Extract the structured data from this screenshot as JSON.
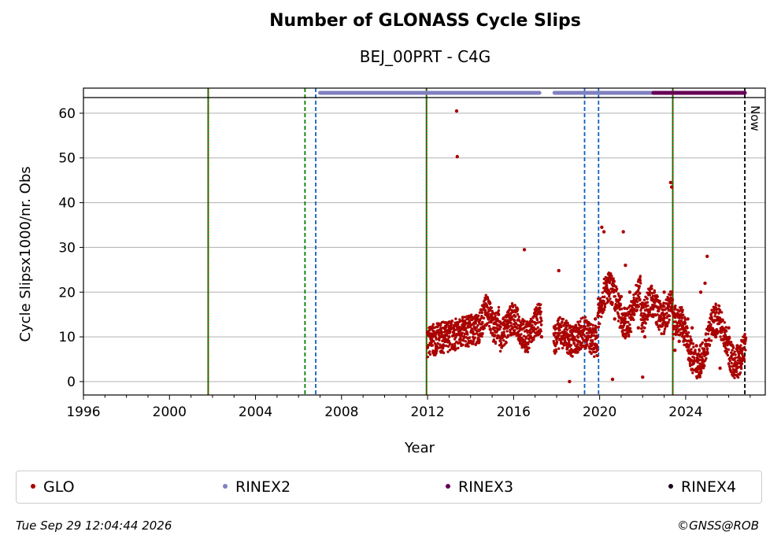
{
  "chart_data": {
    "type": "scatter",
    "title": "Number of GLONASS Cycle Slips",
    "subtitle": "BEJ_00PRT - C4G",
    "xlabel": "Year",
    "ylabel": "Cycle Slipsx1000/nr. Obs",
    "xlim": [
      1996.0,
      2027.7
    ],
    "ylim": [
      -3,
      63.5
    ],
    "x_ticks": [
      1996,
      2000,
      2004,
      2008,
      2012,
      2016,
      2020,
      2024
    ],
    "x_tick_labels": [
      "1996",
      "2000",
      "2004",
      "2008",
      "2012",
      "2016",
      "2020",
      "2024"
    ],
    "y_ticks": [
      0,
      10,
      20,
      30,
      40,
      50,
      60
    ],
    "y_tick_labels": [
      "0",
      "10",
      "20",
      "30",
      "40",
      "50",
      "60"
    ],
    "grid": "horizontal",
    "legend_position": "bottom",
    "now_label": "Now",
    "now_x": 2026.75,
    "vertical_lines": [
      {
        "x": 2001.8,
        "style": "green-red-dotted"
      },
      {
        "x": 2006.3,
        "style": "green-dashed"
      },
      {
        "x": 2006.8,
        "style": "blue-dashed"
      },
      {
        "x": 2011.95,
        "style": "green-red-dotted"
      },
      {
        "x": 2019.3,
        "style": "blue-dashed"
      },
      {
        "x": 2019.95,
        "style": "blue-dashed"
      },
      {
        "x": 2023.4,
        "style": "green-red-dotted"
      }
    ],
    "rinex_periods": [
      {
        "name": "RINEX2",
        "start": 2007.0,
        "end": 2017.2
      },
      {
        "name": "RINEX2",
        "start": 2017.9,
        "end": 2022.5
      },
      {
        "name": "RINEX3",
        "start": 2022.5,
        "end": 2026.75
      }
    ],
    "series": [
      {
        "name": "GLO",
        "points": [
          [
            2012.0,
            11
          ],
          [
            2012.2,
            9
          ],
          [
            2012.4,
            8
          ],
          [
            2012.6,
            10
          ],
          [
            2012.8,
            12
          ],
          [
            2013.0,
            10
          ],
          [
            2013.2,
            11
          ],
          [
            2013.35,
            60.5
          ],
          [
            2013.38,
            50.3
          ],
          [
            2013.5,
            12
          ],
          [
            2013.7,
            10
          ],
          [
            2013.9,
            13
          ],
          [
            2014.1,
            11
          ],
          [
            2014.3,
            14
          ],
          [
            2014.5,
            12
          ],
          [
            2014.7,
            15
          ],
          [
            2014.9,
            16
          ],
          [
            2015.1,
            14
          ],
          [
            2015.3,
            15
          ],
          [
            2015.5,
            13
          ],
          [
            2015.7,
            12
          ],
          [
            2015.9,
            14
          ],
          [
            2016.1,
            13
          ],
          [
            2016.3,
            12
          ],
          [
            2016.5,
            29.5
          ],
          [
            2016.7,
            13
          ],
          [
            2016.9,
            12
          ],
          [
            2017.1,
            11
          ],
          [
            2017.3,
            10
          ],
          [
            2017.9,
            12
          ],
          [
            2018.1,
            24.8
          ],
          [
            2018.3,
            11
          ],
          [
            2018.5,
            10
          ],
          [
            2018.6,
            0
          ],
          [
            2018.8,
            12
          ],
          [
            2019.0,
            9
          ],
          [
            2019.2,
            11
          ],
          [
            2019.4,
            10
          ],
          [
            2019.6,
            8
          ],
          [
            2019.8,
            14
          ],
          [
            2020.0,
            16
          ],
          [
            2020.1,
            34.5
          ],
          [
            2020.2,
            33.5
          ],
          [
            2020.4,
            18
          ],
          [
            2020.6,
            0.5
          ],
          [
            2020.7,
            14
          ],
          [
            2020.9,
            17
          ],
          [
            2021.0,
            19
          ],
          [
            2021.1,
            33.5
          ],
          [
            2021.2,
            26
          ],
          [
            2021.4,
            20
          ],
          [
            2021.6,
            15
          ],
          [
            2021.8,
            12
          ],
          [
            2022.0,
            1
          ],
          [
            2022.1,
            10
          ],
          [
            2022.3,
            16
          ],
          [
            2022.5,
            17
          ],
          [
            2022.7,
            18
          ],
          [
            2022.9,
            15
          ],
          [
            2023.0,
            20
          ],
          [
            2023.2,
            17
          ],
          [
            2023.3,
            44.5
          ],
          [
            2023.35,
            43.5
          ],
          [
            2023.5,
            7
          ],
          [
            2023.7,
            9
          ],
          [
            2023.9,
            11
          ],
          [
            2024.1,
            14
          ],
          [
            2024.3,
            12
          ],
          [
            2024.5,
            8
          ],
          [
            2024.7,
            20
          ],
          [
            2024.9,
            22
          ],
          [
            2025.0,
            28
          ],
          [
            2025.2,
            14
          ],
          [
            2025.4,
            10
          ],
          [
            2025.6,
            3
          ],
          [
            2025.8,
            8
          ],
          [
            2026.0,
            12
          ],
          [
            2026.2,
            5
          ],
          [
            2026.4,
            8
          ],
          [
            2026.6,
            4
          ]
        ]
      },
      {
        "name": "RINEX2",
        "points": []
      },
      {
        "name": "RINEX3",
        "points": []
      },
      {
        "name": "RINEX4",
        "points": []
      }
    ]
  },
  "legend": {
    "items": [
      {
        "label": "GLO",
        "color": "#aa0000"
      },
      {
        "label": "RINEX2",
        "color": "#8080c0"
      },
      {
        "label": "RINEX3",
        "color": "#660055"
      },
      {
        "label": "RINEX4",
        "color": "#1a0020"
      }
    ]
  },
  "footer": {
    "date": "Tue Sep 29 12:04:44 2026",
    "copyright": "©GNSS@ROB"
  },
  "colors": {
    "glo": "#aa0000",
    "rinex2": "#8080c0",
    "rinex3": "#660055",
    "green_line": "#008000",
    "blue_line": "#1060c0",
    "grid": "#b0b0b0"
  }
}
